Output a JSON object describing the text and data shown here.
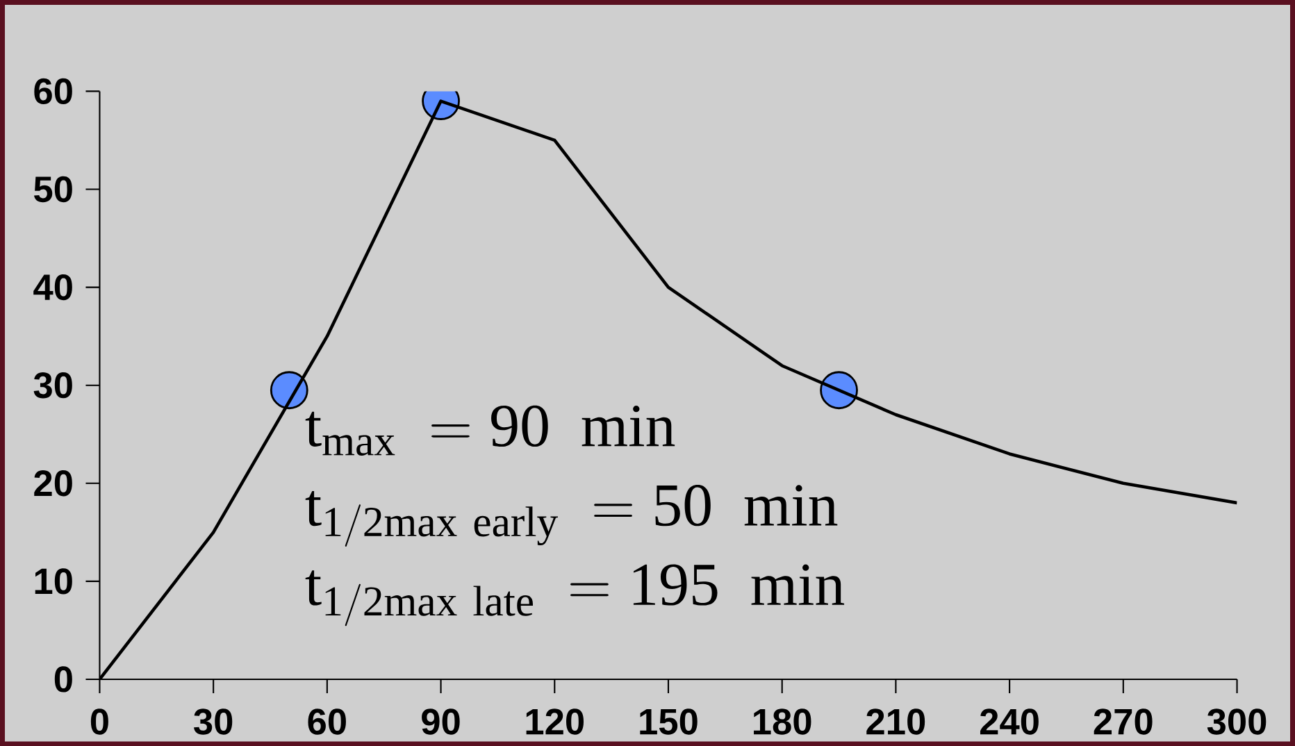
{
  "chart_data": {
    "type": "line",
    "x": [
      0,
      30,
      60,
      90,
      120,
      150,
      180,
      210,
      240,
      270,
      300
    ],
    "series": [
      {
        "color": "#000000",
        "marker": "none",
        "values": [
          0,
          15,
          35,
          59,
          55,
          40,
          32,
          27,
          23,
          20,
          18
        ]
      },
      {
        "type": "scatter",
        "color": "#5b8cff",
        "marker": "circle",
        "x": [
          50,
          90,
          195
        ],
        "values": [
          29.5,
          59,
          29.5
        ]
      }
    ],
    "xlim": [
      0,
      300
    ],
    "ylim": [
      0,
      60
    ],
    "xticks": [
      0,
      30,
      60,
      90,
      120,
      150,
      180,
      210,
      240,
      270,
      300
    ],
    "yticks": [
      0,
      10,
      20,
      30,
      40,
      50,
      60
    ],
    "annotations": [
      "\\mathrm{t_{max}\\ = 90\\ \\ min}",
      "\\mathrm{t_{1/2max\\ early}\\ = 50\\ \\ min}",
      "\\mathrm{t_{1/2max\\ late}\\ = 195\\ \\ min}"
    ]
  }
}
